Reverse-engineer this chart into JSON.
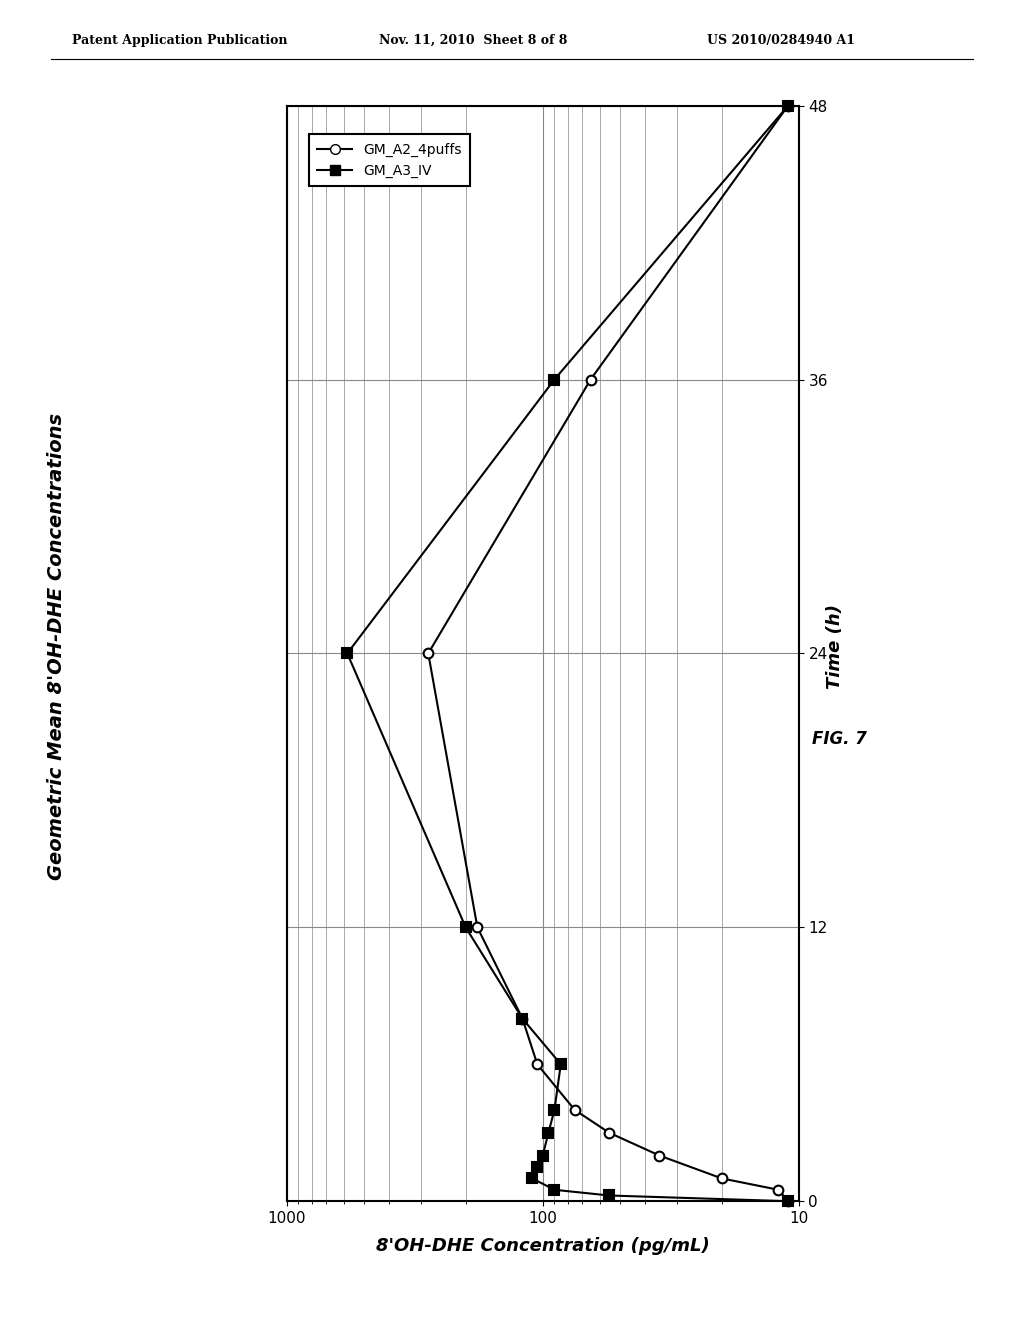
{
  "header_left": "Patent Application Publication",
  "header_mid": "Nov. 11, 2010  Sheet 8 of 8",
  "header_right": "US 2010/0284940 A1",
  "ytitle": "Geometric Mean 8'OH-DHE Concentrations",
  "xlabel": "8'OH-DHE Concentration (pg/mL)",
  "time_label": "Time (h)",
  "fig_label": "FIG. 7",
  "series1_label": "GM_A2_4puffs",
  "series2_label": "GM_A3_IV",
  "series1_time": [
    0,
    0.5,
    1.0,
    2.0,
    3.0,
    4.0,
    6.0,
    8.0,
    12.0,
    24.0,
    36.0,
    48.0
  ],
  "series1_conc": [
    11,
    12,
    20,
    35,
    55,
    75,
    105,
    120,
    180,
    280,
    65,
    11
  ],
  "series2_time": [
    0,
    0.25,
    0.5,
    1.0,
    1.5,
    2.0,
    3.0,
    4.0,
    6.0,
    8.0,
    12.0,
    24.0,
    36.0,
    48.0
  ],
  "series2_conc": [
    11,
    55,
    90,
    110,
    105,
    100,
    95,
    90,
    85,
    120,
    200,
    580,
    90,
    11
  ],
  "xlim_left": 1000,
  "xlim_right": 10,
  "ylim_bottom": 0,
  "ylim_top": 48,
  "yticks": [
    0,
    12,
    24,
    36,
    48
  ],
  "xticks": [
    1000,
    100,
    10
  ],
  "xtick_labels": [
    "1000",
    "100",
    "10"
  ],
  "grid_color": "#888888",
  "bg_color": "#ffffff",
  "line_color": "#000000",
  "header_fontsize": 9,
  "title_fontsize": 14,
  "axis_fontsize": 13,
  "tick_fontsize": 11,
  "legend_fontsize": 10,
  "figsize": [
    10.24,
    13.2
  ],
  "dpi": 100
}
